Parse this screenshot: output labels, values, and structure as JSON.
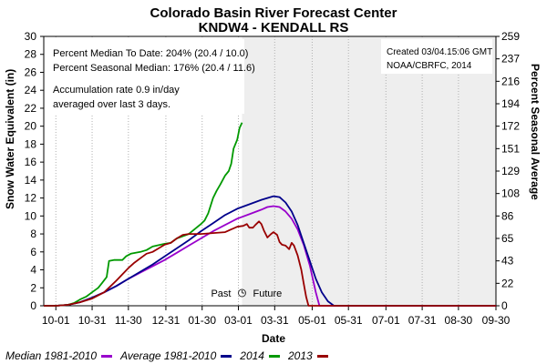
{
  "title_line1": "Colorado Basin River Forecast Center",
  "title_line2": "KNDW4 - KENDALL RS",
  "left_axis_label": "Snow Water Equivalent (in)",
  "right_axis_label": "Percent Seasonal Average",
  "x_axis_label": "Date",
  "info_lines": [
    "Percent Median To Date: 204% (20.4 / 10.0)",
    "Percent Seasonal Median: 176% (20.4 / 11.6)",
    "Accumulation rate 0.9 in/day",
    "averaged over last 3 days."
  ],
  "created_lines": [
    "Created 03/04.15:06 GMT",
    "NOAA/CBRFC, 2014"
  ],
  "past_label": "Past",
  "future_label": "Future",
  "colors": {
    "median": "#9900cc",
    "average": "#00008b",
    "current_2014": "#009900",
    "prior_2013": "#990000",
    "future_shade": "#eeeeee"
  },
  "chart_data": {
    "type": "line",
    "title": "Colorado Basin River Forecast Center",
    "subtitle": "KNDW4 - KENDALL RS",
    "xlabel": "Date",
    "ylabel": "Snow Water Equivalent (in)",
    "ylabel_right": "Percent Seasonal Average",
    "x_ticks": [
      "10-01",
      "10-31",
      "11-30",
      "12-31",
      "01-30",
      "03-01",
      "03-31",
      "05-01",
      "05-31",
      "07-01",
      "07-31",
      "08-30",
      "09-30"
    ],
    "x_tick_days": [
      0,
      30,
      60,
      91,
      121,
      151,
      181,
      212,
      242,
      273,
      303,
      333,
      364
    ],
    "y_ticks": [
      0,
      2,
      4,
      6,
      8,
      10,
      12,
      14,
      16,
      18,
      20,
      22,
      24,
      26,
      28,
      30
    ],
    "y_right_ticks": [
      0,
      22,
      43,
      65,
      86,
      108,
      129,
      151,
      172,
      194,
      216,
      237,
      259
    ],
    "ylim": [
      0,
      30
    ],
    "xlim_days": [
      -10,
      364
    ],
    "today_day": 154,
    "series": [
      {
        "name": "Median 1981-2010",
        "color": "#9900cc",
        "points": [
          [
            -10,
            0
          ],
          [
            0,
            0
          ],
          [
            10,
            0.1
          ],
          [
            20,
            0.4
          ],
          [
            30,
            0.9
          ],
          [
            40,
            1.5
          ],
          [
            50,
            2.2
          ],
          [
            60,
            3.0
          ],
          [
            70,
            3.7
          ],
          [
            80,
            4.4
          ],
          [
            90,
            5.1
          ],
          [
            100,
            5.9
          ],
          [
            110,
            6.7
          ],
          [
            120,
            7.5
          ],
          [
            130,
            8.3
          ],
          [
            140,
            9.0
          ],
          [
            150,
            9.7
          ],
          [
            160,
            10.2
          ],
          [
            170,
            10.7
          ],
          [
            175,
            11.0
          ],
          [
            180,
            11.1
          ],
          [
            185,
            11.0
          ],
          [
            190,
            10.5
          ],
          [
            195,
            9.7
          ],
          [
            200,
            8.5
          ],
          [
            205,
            6.8
          ],
          [
            210,
            4.5
          ],
          [
            215,
            1.5
          ],
          [
            218,
            0
          ],
          [
            364,
            0
          ]
        ]
      },
      {
        "name": "Average 1981-2010",
        "color": "#00008b",
        "points": [
          [
            -10,
            0
          ],
          [
            0,
            0
          ],
          [
            10,
            0.1
          ],
          [
            20,
            0.4
          ],
          [
            30,
            0.9
          ],
          [
            40,
            1.5
          ],
          [
            50,
            2.2
          ],
          [
            60,
            3.0
          ],
          [
            70,
            3.8
          ],
          [
            80,
            4.6
          ],
          [
            90,
            5.5
          ],
          [
            100,
            6.4
          ],
          [
            110,
            7.3
          ],
          [
            120,
            8.3
          ],
          [
            130,
            9.2
          ],
          [
            140,
            10.1
          ],
          [
            150,
            10.8
          ],
          [
            160,
            11.3
          ],
          [
            170,
            11.8
          ],
          [
            175,
            12.0
          ],
          [
            180,
            12.2
          ],
          [
            185,
            12.1
          ],
          [
            190,
            11.5
          ],
          [
            195,
            10.5
          ],
          [
            200,
            9.0
          ],
          [
            205,
            7.0
          ],
          [
            210,
            5.0
          ],
          [
            215,
            3.0
          ],
          [
            220,
            1.5
          ],
          [
            225,
            0.5
          ],
          [
            230,
            0
          ],
          [
            364,
            0
          ]
        ]
      },
      {
        "name": "2014",
        "color": "#009900",
        "points": [
          [
            -10,
            0
          ],
          [
            0,
            0
          ],
          [
            10,
            0.1
          ],
          [
            15,
            0.3
          ],
          [
            20,
            0.7
          ],
          [
            25,
            1.0
          ],
          [
            30,
            1.5
          ],
          [
            35,
            2.0
          ],
          [
            38,
            2.5
          ],
          [
            42,
            3.2
          ],
          [
            44,
            5.0
          ],
          [
            48,
            5.1
          ],
          [
            55,
            5.1
          ],
          [
            58,
            5.5
          ],
          [
            62,
            5.8
          ],
          [
            70,
            6.0
          ],
          [
            75,
            6.2
          ],
          [
            80,
            6.6
          ],
          [
            90,
            6.9
          ],
          [
            95,
            7.0
          ],
          [
            100,
            7.5
          ],
          [
            110,
            8.0
          ],
          [
            120,
            9.1
          ],
          [
            123,
            9.5
          ],
          [
            126,
            10.3
          ],
          [
            130,
            12.0
          ],
          [
            133,
            12.8
          ],
          [
            136,
            13.5
          ],
          [
            140,
            14.5
          ],
          [
            143,
            15.0
          ],
          [
            145,
            15.8
          ],
          [
            147,
            17.5
          ],
          [
            150,
            18.5
          ],
          [
            152,
            19.8
          ],
          [
            154,
            20.4
          ]
        ]
      },
      {
        "name": "2013",
        "color": "#990000",
        "points": [
          [
            -10,
            0
          ],
          [
            0,
            0
          ],
          [
            10,
            0.1
          ],
          [
            20,
            0.4
          ],
          [
            30,
            0.8
          ],
          [
            40,
            1.5
          ],
          [
            50,
            2.8
          ],
          [
            55,
            3.5
          ],
          [
            60,
            4.2
          ],
          [
            65,
            4.8
          ],
          [
            70,
            5.3
          ],
          [
            75,
            5.8
          ],
          [
            80,
            6.0
          ],
          [
            85,
            6.4
          ],
          [
            90,
            6.8
          ],
          [
            95,
            7.0
          ],
          [
            100,
            7.5
          ],
          [
            105,
            7.9
          ],
          [
            110,
            8.0
          ],
          [
            120,
            8.0
          ],
          [
            130,
            8.1
          ],
          [
            140,
            8.2
          ],
          [
            145,
            8.5
          ],
          [
            150,
            8.8
          ],
          [
            155,
            8.9
          ],
          [
            158,
            9.1
          ],
          [
            160,
            8.7
          ],
          [
            163,
            8.7
          ],
          [
            165,
            9.0
          ],
          [
            168,
            9.4
          ],
          [
            170,
            9.1
          ],
          [
            172,
            8.4
          ],
          [
            175,
            7.6
          ],
          [
            178,
            8.0
          ],
          [
            180,
            8.2
          ],
          [
            183,
            7.9
          ],
          [
            185,
            7.1
          ],
          [
            187,
            6.8
          ],
          [
            190,
            6.7
          ],
          [
            193,
            6.3
          ],
          [
            195,
            7.0
          ],
          [
            197,
            6.7
          ],
          [
            200,
            5.6
          ],
          [
            203,
            4.0
          ],
          [
            205,
            2.5
          ],
          [
            207,
            1.0
          ],
          [
            209,
            0
          ],
          [
            364,
            0
          ]
        ]
      }
    ]
  }
}
